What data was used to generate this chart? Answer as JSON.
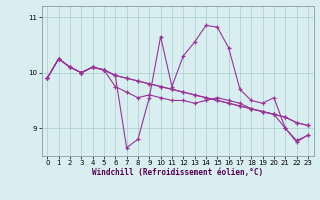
{
  "xlabel": "Windchill (Refroidissement éolien,°C)",
  "background_color": "#d8eef0",
  "line_color": "#993399",
  "grid_color": "#aacccc",
  "xlim": [
    -0.5,
    23.5
  ],
  "ylim": [
    8.5,
    11.2
  ],
  "yticks": [
    9,
    10,
    11
  ],
  "xticks": [
    0,
    1,
    2,
    3,
    4,
    5,
    6,
    7,
    8,
    9,
    10,
    11,
    12,
    13,
    14,
    15,
    16,
    17,
    18,
    19,
    20,
    21,
    22,
    23
  ],
  "lines": [
    [
      9.9,
      10.25,
      10.1,
      10.0,
      10.1,
      10.05,
      9.95,
      9.9,
      9.85,
      9.8,
      9.75,
      9.7,
      9.65,
      9.6,
      9.55,
      9.5,
      9.45,
      9.4,
      9.35,
      9.3,
      9.25,
      9.2,
      9.1,
      9.05
    ],
    [
      9.9,
      10.25,
      10.1,
      10.0,
      10.1,
      10.05,
      9.95,
      8.65,
      8.8,
      9.55,
      10.65,
      9.75,
      10.3,
      10.55,
      10.85,
      10.82,
      10.45,
      9.7,
      9.5,
      9.45,
      9.55,
      9.0,
      8.78,
      8.87
    ],
    [
      9.9,
      10.25,
      10.1,
      10.0,
      10.1,
      10.05,
      9.95,
      9.9,
      9.85,
      9.8,
      9.75,
      9.7,
      9.65,
      9.6,
      9.55,
      9.5,
      9.45,
      9.4,
      9.35,
      9.3,
      9.25,
      9.2,
      9.1,
      9.05
    ],
    [
      9.9,
      10.25,
      10.1,
      10.0,
      10.1,
      10.05,
      9.75,
      9.65,
      9.55,
      9.6,
      9.55,
      9.5,
      9.5,
      9.45,
      9.5,
      9.55,
      9.5,
      9.45,
      9.35,
      9.3,
      9.25,
      9.0,
      8.75,
      8.88
    ]
  ]
}
